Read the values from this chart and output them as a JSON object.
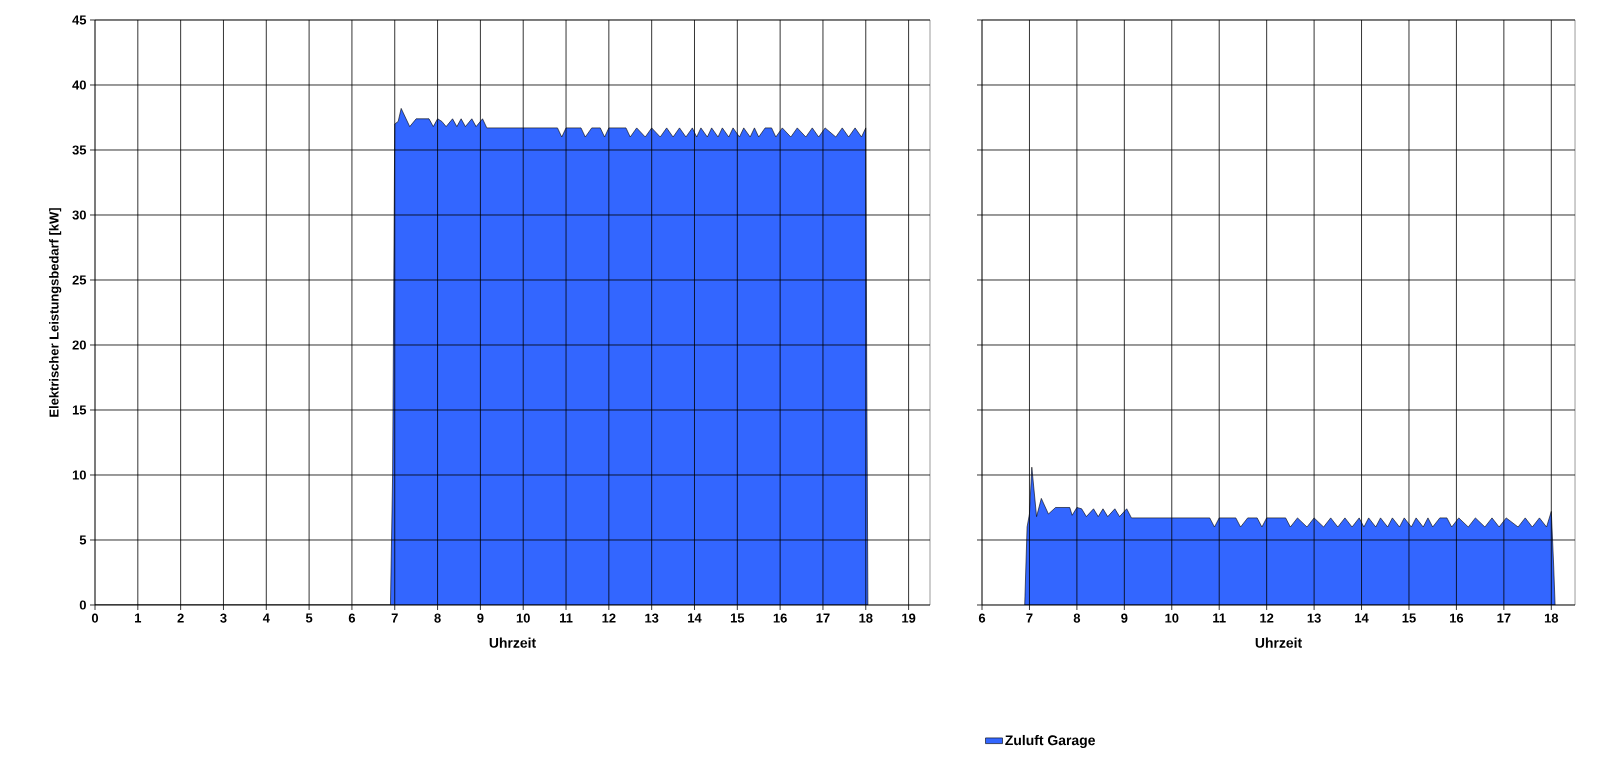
{
  "chart_data": [
    {
      "type": "area",
      "xlabel": "Uhrzeit",
      "ylabel": "Elektrischer Leistungsbedarf [kW]",
      "xlim": [
        0,
        19.5
      ],
      "ylim": [
        0,
        45
      ],
      "xticks": [
        0,
        1,
        2,
        3,
        4,
        5,
        6,
        7,
        8,
        9,
        10,
        11,
        12,
        13,
        14,
        15,
        16,
        17,
        18,
        19
      ],
      "yticks": [
        0,
        5,
        10,
        15,
        20,
        25,
        30,
        35,
        40,
        45
      ],
      "grid": true,
      "legend": false,
      "series": [
        {
          "color": "#3366ff",
          "x": [
            0,
            6.9,
            6.95,
            7.0,
            7.08,
            7.15,
            7.35,
            7.5,
            7.8,
            7.9,
            8.0,
            8.1,
            8.2,
            8.35,
            8.45,
            8.55,
            8.65,
            8.8,
            8.9,
            9.05,
            9.15,
            10.8,
            10.9,
            11.0,
            11.35,
            11.45,
            11.6,
            11.8,
            11.9,
            12.0,
            12.4,
            12.5,
            12.65,
            12.85,
            13.0,
            13.2,
            13.35,
            13.5,
            13.65,
            13.8,
            13.95,
            14.05,
            14.15,
            14.3,
            14.4,
            14.55,
            14.65,
            14.8,
            14.9,
            15.05,
            15.15,
            15.3,
            15.4,
            15.5,
            15.65,
            15.8,
            15.9,
            16.05,
            16.25,
            16.4,
            16.6,
            16.75,
            16.9,
            17.05,
            17.3,
            17.45,
            17.6,
            17.75,
            17.9,
            18.0,
            18.02,
            18.05
          ],
          "values": [
            0,
            0,
            10,
            37,
            37.2,
            38.2,
            36.8,
            37.4,
            37.4,
            36.8,
            37.4,
            37.2,
            36.8,
            37.4,
            36.8,
            37.4,
            36.8,
            37.4,
            36.8,
            37.4,
            36.7,
            36.7,
            36.0,
            36.7,
            36.7,
            36.0,
            36.7,
            36.7,
            36.0,
            36.7,
            36.7,
            36.0,
            36.7,
            36.0,
            36.7,
            36.0,
            36.7,
            36.0,
            36.7,
            36.0,
            36.7,
            36.0,
            36.7,
            36.0,
            36.7,
            36.0,
            36.7,
            36.0,
            36.7,
            36.0,
            36.7,
            36.0,
            36.7,
            36.0,
            36.7,
            36.7,
            36.0,
            36.7,
            36.0,
            36.7,
            36.0,
            36.7,
            36.0,
            36.7,
            36.0,
            36.7,
            36.0,
            36.7,
            36.0,
            36.7,
            20,
            0
          ]
        }
      ]
    },
    {
      "type": "area",
      "xlabel": "Uhrzeit",
      "xlim": [
        6,
        18.5
      ],
      "ylim": [
        0,
        45
      ],
      "xticks": [
        6,
        7,
        8,
        9,
        10,
        11,
        12,
        13,
        14,
        15,
        16,
        17,
        18
      ],
      "yticks": [
        0,
        5,
        10,
        15,
        20,
        25,
        30,
        35,
        40,
        45
      ],
      "grid": true,
      "legend": "bottom",
      "tick_labels": "x",
      "series": [
        {
          "name": "Zuluft Garage",
          "color": "#3366ff",
          "x": [
            6.9,
            6.95,
            7.0,
            7.05,
            7.15,
            7.25,
            7.4,
            7.55,
            7.85,
            7.9,
            8.0,
            8.1,
            8.2,
            8.35,
            8.45,
            8.55,
            8.65,
            8.8,
            8.9,
            9.05,
            9.15,
            10.8,
            10.9,
            11.0,
            11.35,
            11.45,
            11.6,
            11.8,
            11.9,
            12.0,
            12.4,
            12.5,
            12.65,
            12.85,
            13.0,
            13.2,
            13.35,
            13.5,
            13.65,
            13.8,
            13.95,
            14.05,
            14.15,
            14.3,
            14.4,
            14.55,
            14.65,
            14.8,
            14.9,
            15.05,
            15.15,
            15.3,
            15.4,
            15.5,
            15.65,
            15.8,
            15.9,
            16.05,
            16.25,
            16.4,
            16.6,
            16.75,
            16.9,
            17.05,
            17.3,
            17.45,
            17.6,
            17.75,
            17.9,
            18.0,
            18.05,
            18.08
          ],
          "values": [
            0,
            6,
            7,
            10.6,
            6.8,
            8.2,
            7.0,
            7.5,
            7.5,
            6.9,
            7.5,
            7.4,
            6.8,
            7.4,
            6.8,
            7.4,
            6.8,
            7.4,
            6.8,
            7.4,
            6.7,
            6.7,
            6.0,
            6.7,
            6.7,
            6.0,
            6.7,
            6.7,
            6.0,
            6.7,
            6.7,
            6.0,
            6.7,
            6.0,
            6.7,
            6.0,
            6.7,
            6.0,
            6.7,
            6.0,
            6.7,
            6.0,
            6.7,
            6.0,
            6.7,
            6.0,
            6.7,
            6.0,
            6.7,
            6.0,
            6.7,
            6.0,
            6.7,
            6.0,
            6.7,
            6.7,
            6.0,
            6.7,
            6.0,
            6.7,
            6.0,
            6.7,
            6.0,
            6.7,
            6.0,
            6.7,
            6.0,
            6.7,
            6.0,
            7.2,
            3,
            0
          ]
        }
      ]
    }
  ]
}
